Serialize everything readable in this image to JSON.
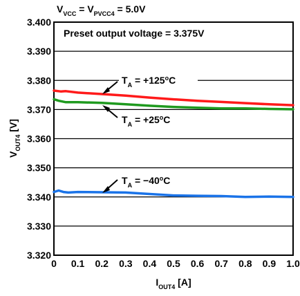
{
  "chart_data": {
    "type": "line",
    "title": {
      "parts": [
        {
          "t": "V",
          "sub": false
        },
        {
          "t": "VCC",
          "sub": true
        },
        {
          "t": " = V",
          "sub": false
        },
        {
          "t": "PVCC4",
          "sub": true
        },
        {
          "t": " = 5.0V",
          "sub": false
        }
      ]
    },
    "xlabel": {
      "parts": [
        {
          "t": "I",
          "sub": false
        },
        {
          "t": "OUT4",
          "sub": true
        },
        {
          "t": " [A]",
          "sub": false
        }
      ]
    },
    "ylabel": {
      "parts": [
        {
          "t": "V",
          "sub": false
        },
        {
          "t": "OUT4",
          "sub": true
        },
        {
          "t": " [V]",
          "sub": false
        }
      ]
    },
    "inner_note": "Preset output voltage = 3.375V",
    "xlim": [
      0,
      1.0
    ],
    "ylim": [
      3.32,
      3.4
    ],
    "x_ticks": [
      "0",
      "0.1",
      "0.2",
      "0.3",
      "0.4",
      "0.5",
      "0.6",
      "0.7",
      "0.8",
      "0.9",
      "1.0"
    ],
    "y_ticks": [
      "3.400",
      "3.390",
      "3.380",
      "3.370",
      "3.360",
      "3.350",
      "3.340",
      "3.330",
      "3.320"
    ],
    "grid": "horizontal",
    "series": [
      {
        "color": "#ff1a1a",
        "x": [
          0,
          0.03,
          0.05,
          0.1,
          0.2,
          0.3,
          0.4,
          0.5,
          0.6,
          0.7,
          0.8,
          0.9,
          1.0
        ],
        "y": [
          3.3765,
          3.3762,
          3.3763,
          3.3758,
          3.3753,
          3.3748,
          3.3741,
          3.3735,
          3.373,
          3.3726,
          3.3722,
          3.3718,
          3.3715
        ]
      },
      {
        "color": "#1f9a1f",
        "x": [
          0,
          0.02,
          0.05,
          0.1,
          0.2,
          0.3,
          0.4,
          0.5,
          0.6,
          0.7,
          0.8,
          0.9,
          1.0
        ],
        "y": [
          3.3735,
          3.373,
          3.3725,
          3.3725,
          3.3723,
          3.3718,
          3.3713,
          3.3709,
          3.3706,
          3.3704,
          3.3704,
          3.3702,
          3.3701
        ]
      },
      {
        "color": "#1a73e8",
        "x": [
          0,
          0.02,
          0.04,
          0.06,
          0.1,
          0.2,
          0.3,
          0.4,
          0.5,
          0.6,
          0.7,
          0.8,
          0.9,
          1.0
        ],
        "y": [
          3.3417,
          3.3422,
          3.3417,
          3.3415,
          3.3417,
          3.3416,
          3.3415,
          3.341,
          3.3405,
          3.3404,
          3.3403,
          3.34,
          3.3401,
          3.34
        ]
      }
    ],
    "annotations": [
      {
        "parts": [
          {
            "t": "T",
            "sub": false
          },
          {
            "t": "A",
            "sub": true
          },
          {
            "t": " = +125",
            "sub": false
          },
          {
            "t": "o",
            "sup": true
          },
          {
            "t": "C",
            "sub": false
          }
        ],
        "series": 0
      },
      {
        "parts": [
          {
            "t": "T",
            "sub": false
          },
          {
            "t": "A",
            "sub": true
          },
          {
            "t": " = +25",
            "sub": false
          },
          {
            "t": "o",
            "sup": true
          },
          {
            "t": "C",
            "sub": false
          }
        ],
        "series": 1
      },
      {
        "parts": [
          {
            "t": "T",
            "sub": false
          },
          {
            "t": "A",
            "sub": true
          },
          {
            "t": " = −40",
            "sub": false
          },
          {
            "t": "o",
            "sup": true
          },
          {
            "t": "C",
            "sub": false
          }
        ],
        "series": 2
      }
    ]
  }
}
